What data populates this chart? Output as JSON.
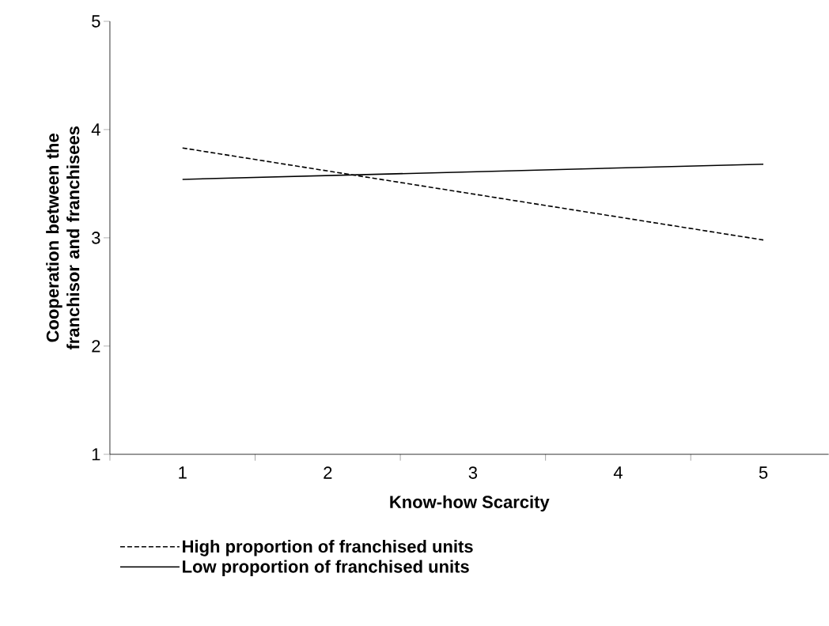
{
  "chart_data": {
    "type": "line",
    "xlabel": "Know-how Scarcity",
    "ylabel": "Cooperation between the franchisor and franchisees",
    "x": [
      1,
      5
    ],
    "xlim": [
      0.5,
      5.45
    ],
    "xticks": [
      {
        "value": 0.5,
        "label": null
      },
      1,
      {
        "value": 1.5,
        "label": null
      },
      2,
      {
        "value": 2.5,
        "label": null
      },
      3,
      {
        "value": 3.5,
        "label": null
      },
      4,
      {
        "value": 4.5,
        "label": null
      },
      5
    ],
    "ylim": [
      1,
      5
    ],
    "yticks": [
      1,
      2,
      3,
      4,
      5
    ],
    "legend": "bottom",
    "series": [
      {
        "name": "High proportion of franchised units",
        "color": "#000000",
        "line_style": "dashed",
        "values": [
          3.83,
          2.98
        ]
      },
      {
        "name": "Low proportion of franchised units",
        "color": "#000000",
        "line_style": "solid",
        "values": [
          3.54,
          3.68
        ]
      }
    ]
  }
}
